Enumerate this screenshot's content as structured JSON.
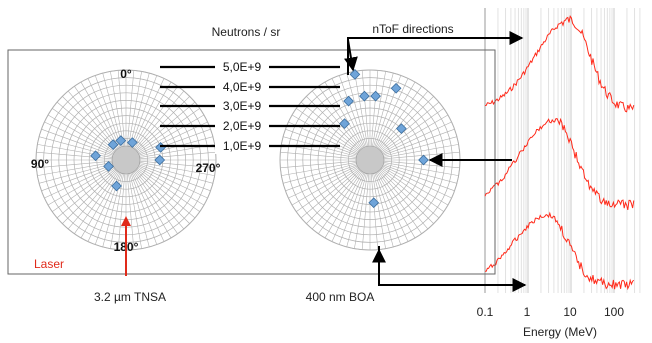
{
  "header": {
    "neutrons_label": "Neutrons / sr",
    "ntof_label": "nToF directions"
  },
  "colors": {
    "marker": "#6fa4d9",
    "marker_edge": "#3d6f9f",
    "spectrum": "#ff2a1a",
    "laser": "#e02a1a",
    "polar_line": "#b0b0b0",
    "polar_core": "#c8c8c8"
  },
  "legend_levels": [
    "5,0E+9",
    "4,0E+9",
    "3,0E+9",
    "2,0E+9",
    "1,0E+9"
  ],
  "left_plot": {
    "angle_labels": {
      "top": "0°",
      "left": "90°",
      "right": "270°",
      "bottom": "180°"
    },
    "laser_label": "Laser",
    "caption": "3.2 µm TNSA",
    "points": [
      {
        "angle_deg": 82,
        "value": 1100000000.0
      },
      {
        "angle_deg": 40,
        "value": 400000000.0
      },
      {
        "angle_deg": 15,
        "value": 400000000.0
      },
      {
        "angle_deg": -20,
        "value": 300000000.0
      },
      {
        "angle_deg": 160,
        "value": 900000000.0
      },
      {
        "angle_deg": 270,
        "value": 1300000000.0
      },
      {
        "angle_deg": 290,
        "value": 1500000000.0
      },
      {
        "angle_deg": 110,
        "value": 300000000.0
      }
    ]
  },
  "right_plot": {
    "caption": "400 nm BOA",
    "points": [
      {
        "angle_deg": 10,
        "value": 4800000000.0
      },
      {
        "angle_deg": 340,
        "value": 4100000000.0
      },
      {
        "angle_deg": 355,
        "value": 3300000000.0
      },
      {
        "angle_deg": 20,
        "value": 3200000000.0
      },
      {
        "angle_deg": 5,
        "value": 3300000000.0
      },
      {
        "angle_deg": 35,
        "value": 2000000000.0
      },
      {
        "angle_deg": 315,
        "value": 2000000000.0
      },
      {
        "angle_deg": 270,
        "value": 2600000000.0
      },
      {
        "angle_deg": 185,
        "value": 1900000000.0
      }
    ]
  },
  "spectra": {
    "x_ticks": [
      "0.1",
      "1",
      "10",
      "100"
    ],
    "x_label": "Energy (MeV)"
  }
}
